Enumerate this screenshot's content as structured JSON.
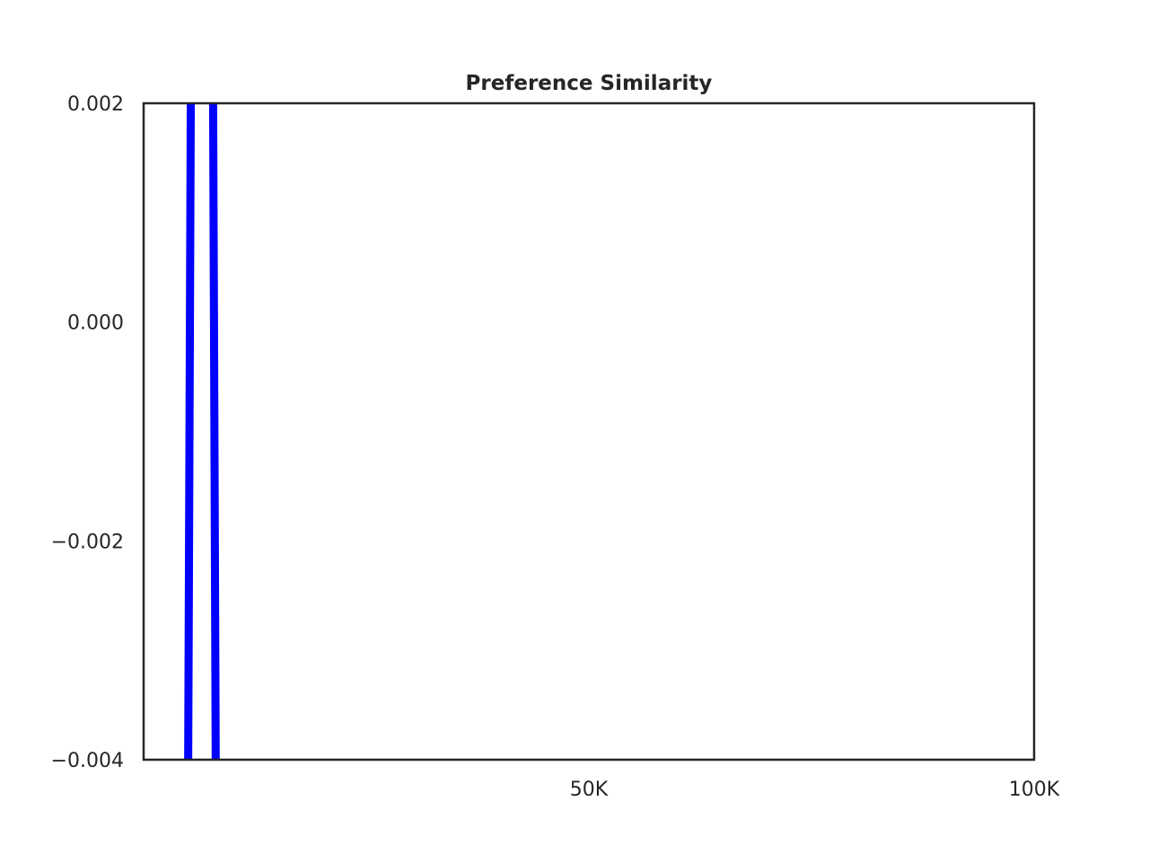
{
  "chart_data": {
    "type": "line",
    "title": "Preference Similarity",
    "xlabel": "",
    "ylabel": "",
    "xlim": [
      0,
      100000
    ],
    "ylim": [
      -0.004,
      0.002
    ],
    "xticks": [
      {
        "value": 50000,
        "label": "50K"
      },
      {
        "value": 100000,
        "label": "100K"
      }
    ],
    "yticks": [
      {
        "value": 0.002,
        "label": "0.002"
      },
      {
        "value": 0.0,
        "label": "0.000"
      },
      {
        "value": -0.002,
        "label": "−0.002"
      },
      {
        "value": -0.004,
        "label": "−0.004"
      }
    ],
    "grid": false,
    "legend": "none",
    "series": [
      {
        "color": "#0000ff",
        "x": [
          5000,
          5300,
          7800,
          8100
        ],
        "y": [
          -0.0041,
          0.0021,
          0.0021,
          -0.0041
        ]
      }
    ]
  }
}
